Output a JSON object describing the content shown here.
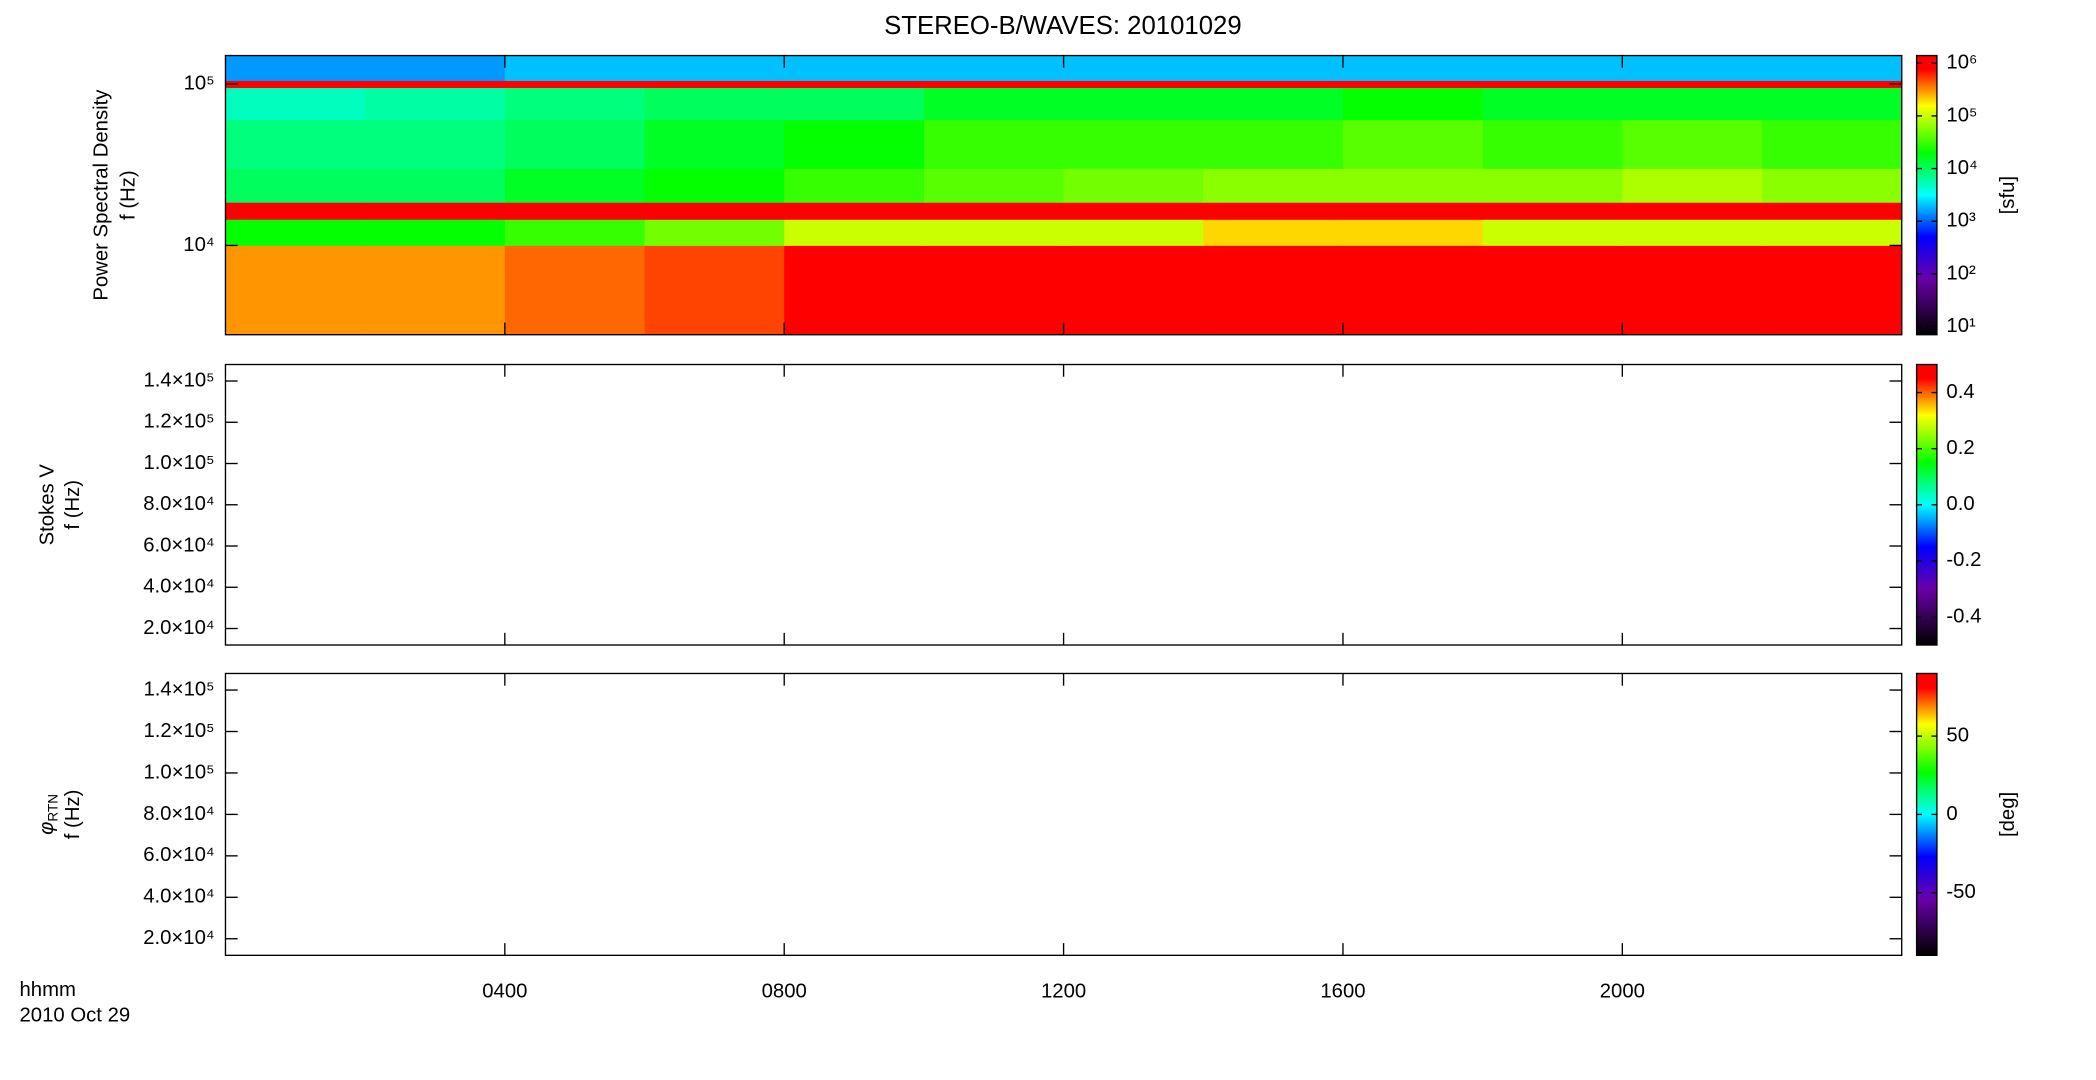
{
  "title": "STEREO-B/WAVES: 20101029",
  "x_label": "hhmm",
  "date": "2010 Oct 29",
  "xlim": [
    0,
    24
  ],
  "xticks": [
    {
      "value": 4,
      "label": "0400"
    },
    {
      "value": 8,
      "label": "0800"
    },
    {
      "value": 12,
      "label": "1200"
    },
    {
      "value": 16,
      "label": "1600"
    },
    {
      "value": 20,
      "label": "2000"
    }
  ],
  "colormap": [
    [
      0,
      "#000000"
    ],
    [
      0.2,
      "#6a00a8"
    ],
    [
      0.35,
      "#0000ff"
    ],
    [
      0.5,
      "#00ffff"
    ],
    [
      0.65,
      "#00ff00"
    ],
    [
      0.82,
      "#ffff00"
    ],
    [
      0.95,
      "#ff0000"
    ],
    [
      1,
      "#ff0000"
    ]
  ],
  "chart_data": [
    {
      "type": "heatmap",
      "y_label": [
        "Power Spectral Density",
        "f (Hz)"
      ],
      "log_y": true,
      "ylim": [
        2800,
        150000
      ],
      "yticks": [
        {
          "value": 10000,
          "label": "10⁴"
        },
        {
          "value": 100000,
          "label": "10⁵"
        }
      ],
      "log_z": true,
      "zlim": [
        7,
        1400000
      ],
      "zticks": [
        {
          "value": 10,
          "label": "10¹"
        },
        {
          "value": 100,
          "label": "10²"
        },
        {
          "value": 1000,
          "label": "10³"
        },
        {
          "value": 10000,
          "label": "10⁴"
        },
        {
          "value": 100000,
          "label": "10⁵"
        },
        {
          "value": 1000000,
          "label": "10⁶"
        }
      ],
      "z_label": "[sfu]",
      "x_edges": [
        0,
        2,
        4,
        6,
        8,
        10,
        12,
        14,
        16,
        18,
        20,
        22,
        24
      ],
      "y_edges": [
        2800,
        10000,
        14500,
        18500,
        30000,
        60000,
        95000,
        105000,
        150000
      ],
      "values": [
        [
          300000,
          300000,
          400000,
          500000,
          800000,
          1000000,
          1000000,
          1000000,
          1000000,
          1000000,
          1000000,
          1000000
        ],
        [
          20000,
          20000,
          30000,
          50000,
          100000,
          100000,
          100000,
          200000,
          200000,
          100000,
          100000,
          100000
        ],
        [
          1000000,
          1000000,
          1000000,
          1000000,
          1000000,
          1000000,
          1000000,
          1000000,
          1000000,
          1000000,
          1000000,
          1000000
        ],
        [
          10000,
          10000,
          15000,
          20000,
          30000,
          40000,
          50000,
          60000,
          60000,
          60000,
          80000,
          60000
        ],
        [
          8000,
          8000,
          10000,
          15000,
          20000,
          30000,
          30000,
          30000,
          40000,
          30000,
          40000,
          30000
        ],
        [
          5000,
          6000,
          8000,
          10000,
          10000,
          15000,
          15000,
          15000,
          20000,
          15000,
          15000,
          15000
        ],
        [
          1000000,
          1000000,
          1000000,
          1000000,
          1000000,
          1000000,
          1000000,
          1000000,
          1000000,
          1000000,
          1000000,
          1000000
        ],
        [
          1500,
          1500,
          2000,
          2000,
          2000,
          2000,
          2000,
          2000,
          2000,
          2000,
          2000,
          2000
        ]
      ]
    },
    {
      "type": "heatmap",
      "y_label": [
        "Stokes V",
        "f (Hz)"
      ],
      "log_y": false,
      "ylim": [
        12000,
        148000
      ],
      "yticks": [
        {
          "value": 20000,
          "label": "2.0×10⁴"
        },
        {
          "value": 40000,
          "label": "4.0×10⁴"
        },
        {
          "value": 60000,
          "label": "6.0×10⁴"
        },
        {
          "value": 80000,
          "label": "8.0×10⁴"
        },
        {
          "value": 100000,
          "label": "1.0×10⁵"
        },
        {
          "value": 120000,
          "label": "1.2×10⁵"
        },
        {
          "value": 140000,
          "label": "1.4×10⁵"
        }
      ],
      "log_z": false,
      "zlim": [
        -0.5,
        0.5
      ],
      "zticks": [
        -0.4,
        -0.2,
        {
          "value": 0,
          "label": "0.0"
        },
        0.2,
        0.4
      ]
    },
    {
      "type": "heatmap",
      "y_label": [
        {
          "symbol": "φ",
          "sub": "RTN"
        },
        "f (Hz)"
      ],
      "log_y": false,
      "ylim": [
        12000,
        148000
      ],
      "yticks": [
        {
          "value": 20000,
          "label": "2.0×10⁴"
        },
        {
          "value": 40000,
          "label": "4.0×10⁴"
        },
        {
          "value": 60000,
          "label": "6.0×10⁴"
        },
        {
          "value": 80000,
          "label": "8.0×10⁴"
        },
        {
          "value": 100000,
          "label": "1.0×10⁵"
        },
        {
          "value": 120000,
          "label": "1.2×10⁵"
        },
        {
          "value": 140000,
          "label": "1.4×10⁵"
        }
      ],
      "log_z": false,
      "zlim": [
        -90,
        90
      ],
      "zticks": [
        -50,
        0,
        50
      ],
      "z_label": "[deg]"
    }
  ]
}
